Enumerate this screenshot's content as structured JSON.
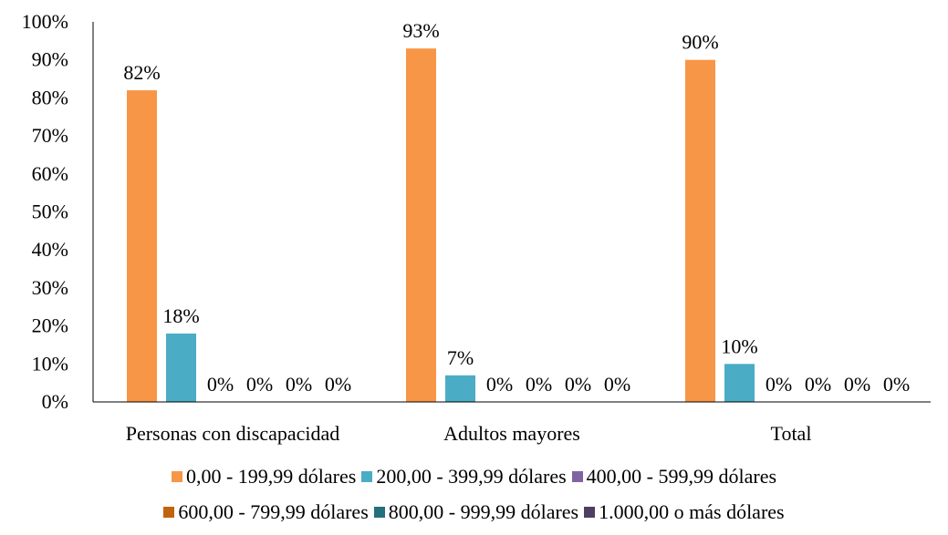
{
  "chart_data": {
    "type": "bar",
    "categories": [
      "Personas con discapacidad",
      "Adultos mayores",
      "Total"
    ],
    "series": [
      {
        "name": "0,00 - 199,99 dólares",
        "color": "#F79646",
        "values": [
          82,
          93,
          90
        ]
      },
      {
        "name": "200,00 - 399,99 dólares",
        "color": "#4BACC6",
        "values": [
          18,
          7,
          10
        ]
      },
      {
        "name": "400,00 - 599,99 dólares",
        "color": "#8064A2",
        "values": [
          0,
          0,
          0
        ]
      },
      {
        "name": "600,00 - 799,99 dólares",
        "color": "#C0640E",
        "values": [
          0,
          0,
          0
        ]
      },
      {
        "name": "800,00 - 999,99 dólares",
        "color": "#23707E",
        "values": [
          0,
          0,
          0
        ]
      },
      {
        "name": "1.000,00 o más dólares",
        "color": "#4F3D62",
        "values": [
          0,
          0,
          0
        ]
      }
    ],
    "value_labels": [
      [
        "82%",
        "93%",
        "90%"
      ],
      [
        "18%",
        "7%",
        "10%"
      ],
      [
        "0%",
        "0%",
        "0%"
      ],
      [
        "0%",
        "0%",
        "0%"
      ],
      [
        "0%",
        "0%",
        "0%"
      ],
      [
        "0%",
        "0%",
        "0%"
      ]
    ],
    "y_ticks": [
      "0%",
      "10%",
      "20%",
      "30%",
      "40%",
      "50%",
      "60%",
      "70%",
      "80%",
      "90%",
      "100%"
    ],
    "ylim": [
      0,
      100
    ],
    "grid": false,
    "legend_position": "bottom",
    "title": "",
    "xlabel": "",
    "ylabel": ""
  }
}
